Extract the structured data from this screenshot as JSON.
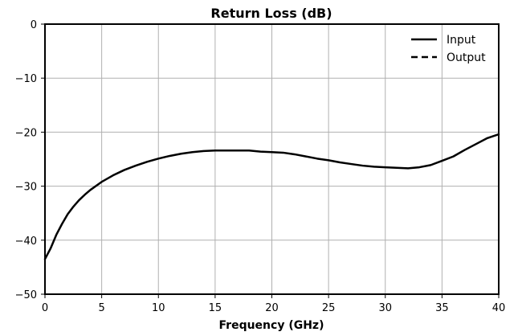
{
  "chart_data": {
    "type": "line",
    "title": "Return Loss (dB)",
    "xlabel": "Frequency (GHz)",
    "ylabel": "",
    "xlim": [
      0,
      40
    ],
    "ylim": [
      -50,
      0
    ],
    "x_ticks": [
      0,
      5,
      10,
      15,
      20,
      25,
      30,
      35,
      40
    ],
    "y_ticks": [
      0,
      -10,
      -20,
      -30,
      -40,
      -50
    ],
    "x_tick_labels": [
      "0",
      "5",
      "10",
      "15",
      "20",
      "25",
      "30",
      "35",
      "40"
    ],
    "y_tick_labels": [
      "0",
      "−10",
      "−20",
      "−30",
      "−40",
      "−50"
    ],
    "grid": true,
    "legend_position": "top-right",
    "series": [
      {
        "name": "Input",
        "line_style": "solid",
        "color": "#000000",
        "x": [
          0,
          0.25,
          0.5,
          1,
          1.5,
          2,
          2.5,
          3,
          3.5,
          4,
          5,
          6,
          7,
          8,
          9,
          10,
          11,
          12,
          13,
          14,
          15,
          16,
          17,
          18,
          19,
          20,
          21,
          22,
          23,
          24,
          25,
          26,
          27,
          28,
          29,
          30,
          31,
          32,
          33,
          34,
          35,
          36,
          37,
          38,
          39,
          40
        ],
        "y": [
          -43.5,
          -42.5,
          -41.5,
          -39,
          -37,
          -35.2,
          -33.8,
          -32.6,
          -31.6,
          -30.7,
          -29.2,
          -28,
          -27,
          -26.2,
          -25.5,
          -24.9,
          -24.4,
          -24,
          -23.7,
          -23.5,
          -23.4,
          -23.4,
          -23.4,
          -23.4,
          -23.6,
          -23.7,
          -23.8,
          -24.1,
          -24.5,
          -24.9,
          -25.2,
          -25.6,
          -25.9,
          -26.2,
          -26.4,
          -26.5,
          -26.6,
          -26.7,
          -26.5,
          -26.1,
          -25.3,
          -24.5,
          -23.3,
          -22.2,
          -21.1,
          -20.4
        ]
      },
      {
        "name": "Output",
        "line_style": "dashed",
        "color": "#000000",
        "x": [],
        "y": []
      }
    ]
  }
}
